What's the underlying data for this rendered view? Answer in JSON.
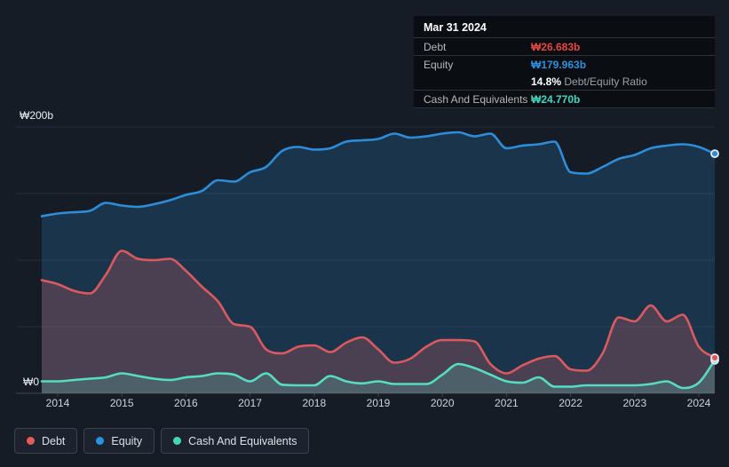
{
  "colors": {
    "background": "#151c26",
    "grid": "#272e3a",
    "axis": "#3c4450",
    "marker_stroke": "#e8edf2"
  },
  "tooltip": {
    "date": "Mar 31 2024",
    "debt": {
      "label": "Debt",
      "value": "₩26.683b",
      "color": "#e6473f"
    },
    "equity": {
      "label": "Equity",
      "value": "₩179.963b",
      "color": "#2b90dd"
    },
    "ratio": {
      "value": "14.8%",
      "label": "Debt/Equity Ratio"
    },
    "cash": {
      "label": "Cash And Equivalents",
      "value": "₩24.770b",
      "color": "#3fd6c0"
    }
  },
  "legend": {
    "items": [
      {
        "label": "Debt",
        "color": "#e85b5b"
      },
      {
        "label": "Equity",
        "color": "#2a93e0"
      },
      {
        "label": "Cash And Equivalents",
        "color": "#46d6b6"
      }
    ]
  },
  "chart_data": {
    "type": "area",
    "x_quarters": [
      "2013 Q3",
      "2013 Q4",
      "2014 Q1",
      "2014 Q2",
      "2014 Q3",
      "2014 Q4",
      "2015 Q1",
      "2015 Q2",
      "2015 Q3",
      "2015 Q4",
      "2016 Q1",
      "2016 Q2",
      "2016 Q3",
      "2016 Q4",
      "2017 Q1",
      "2017 Q2",
      "2017 Q3",
      "2017 Q4",
      "2018 Q1",
      "2018 Q2",
      "2018 Q3",
      "2018 Q4",
      "2019 Q1",
      "2019 Q2",
      "2019 Q3",
      "2019 Q4",
      "2020 Q1",
      "2020 Q2",
      "2020 Q3",
      "2020 Q4",
      "2021 Q1",
      "2021 Q2",
      "2021 Q3",
      "2021 Q4",
      "2022 Q1",
      "2022 Q2",
      "2022 Q3",
      "2022 Q4",
      "2023 Q1",
      "2023 Q2",
      "2023 Q3",
      "2023 Q4",
      "2024 Q1"
    ],
    "series": [
      {
        "name": "Debt",
        "color": "#dc5a5f",
        "fill": "rgba(217,95,99,0.26)",
        "values": [
          85,
          82,
          77,
          75,
          89,
          107,
          101,
          100,
          101,
          92,
          80,
          69,
          52,
          50,
          33,
          30,
          35,
          36,
          31,
          38,
          42,
          33,
          23,
          26,
          35,
          40,
          40,
          39,
          22,
          15,
          21,
          26,
          28,
          18,
          17,
          30,
          57,
          54,
          66,
          54,
          59,
          35,
          26.683
        ]
      },
      {
        "name": "Equity",
        "color": "#2d8dd8",
        "fill": "rgba(45,141,216,0.22)",
        "values": [
          133,
          135,
          136,
          137,
          143,
          141,
          140,
          142,
          145,
          149,
          152,
          160,
          159,
          166,
          170,
          182,
          185,
          183,
          184,
          189,
          190,
          191,
          195,
          192,
          193,
          195,
          196,
          193,
          195,
          184,
          186,
          187,
          189,
          166,
          165,
          170,
          176,
          179,
          184,
          186,
          187,
          185,
          179.963
        ]
      },
      {
        "name": "Cash And Equivalents",
        "color": "#55ddc2",
        "fill": "rgba(87,223,195,0.20)",
        "values": [
          9,
          9,
          10,
          11,
          12,
          15,
          13,
          11,
          10,
          12,
          13,
          15,
          14,
          9,
          15,
          6.5,
          6,
          6,
          13,
          9,
          7.5,
          9,
          7,
          7,
          7,
          14,
          22,
          19,
          14,
          9,
          8,
          12,
          5,
          5,
          6,
          6,
          6,
          6,
          7,
          9,
          4,
          8,
          24.77
        ]
      }
    ],
    "x_axis_labels": [
      "2014",
      "2015",
      "2016",
      "2017",
      "2018",
      "2019",
      "2020",
      "2021",
      "2022",
      "2023",
      "2024"
    ],
    "y_axis": {
      "top_label": "₩200b",
      "zero_label": "₩0",
      "min": 0,
      "max": 200,
      "grid_values": [
        200,
        150,
        100,
        50,
        0
      ],
      "unit": "₩ billions"
    },
    "legend_position": "bottom",
    "last_point_markers": true
  }
}
